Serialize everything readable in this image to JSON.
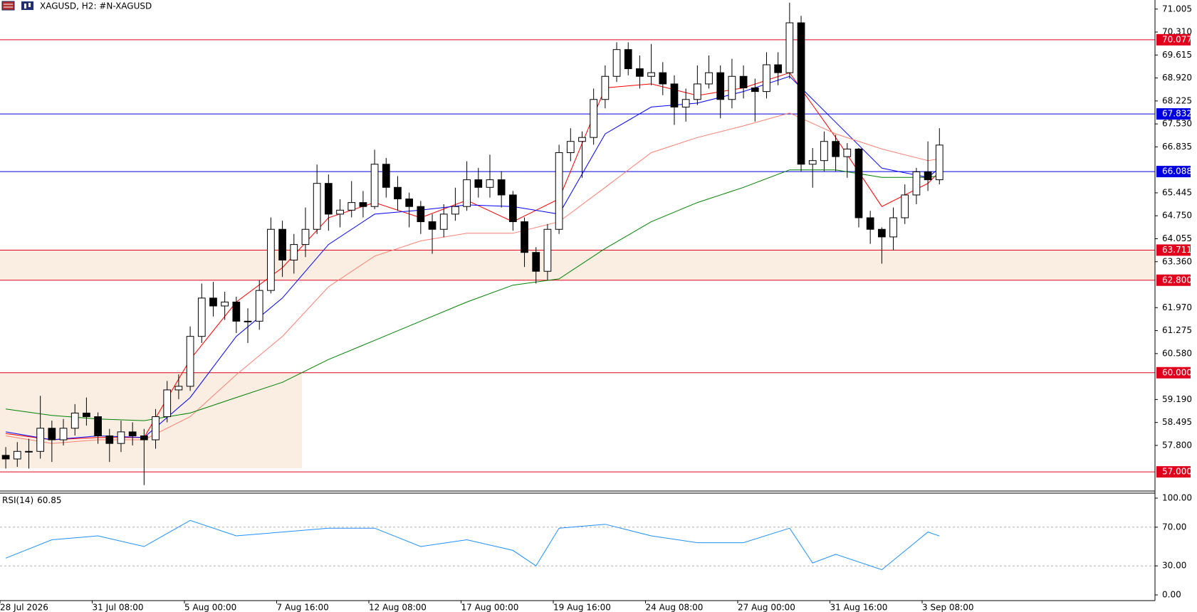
{
  "chart_data": [
    {
      "type": "candlestick",
      "title": "XAGUSD, H2:  #N-XAGUSD",
      "up_color": "#ffffff",
      "down_color": "#000000",
      "outline_color": "#000000",
      "open": [
        57.5,
        57.39,
        57.62,
        57.62,
        58.32,
        57.97,
        58.32,
        58.78,
        58.67,
        58.09,
        57.86,
        58.21,
        58.09,
        57.97,
        58.67,
        59.48,
        59.59,
        61.1,
        62.26,
        62.02,
        62.14,
        61.56,
        61.56,
        62.49,
        64.34,
        63.41,
        63.88,
        64.34,
        65.73,
        64.8,
        64.92,
        65.15,
        65.03,
        66.31,
        65.61,
        65.26,
        65.03,
        64.57,
        64.34,
        64.8,
        65.03,
        65.84,
        65.61,
        65.84,
        65.38,
        64.57,
        63.64,
        63.07,
        64.34,
        66.66,
        67.0,
        67.12,
        68.27,
        68.97,
        69.78,
        69.2,
        68.97,
        69.08,
        68.74,
        68.04,
        68.27,
        68.74,
        69.08,
        68.27,
        68.97,
        68.62,
        68.51,
        69.32,
        69.08,
        70.59,
        66.31,
        66.42,
        67.0,
        66.54,
        66.77,
        64.69,
        64.34,
        64.11,
        64.69,
        65.38,
        66.08,
        65.84
      ],
      "high": [
        57.75,
        57.9,
        58.0,
        59.3,
        58.55,
        58.6,
        59.05,
        59.25,
        58.8,
        58.3,
        58.55,
        58.5,
        58.3,
        58.9,
        59.75,
        59.95,
        61.4,
        62.7,
        62.75,
        62.45,
        62.3,
        61.95,
        62.8,
        64.7,
        64.6,
        64.2,
        65.0,
        66.3,
        66.0,
        65.25,
        65.8,
        65.5,
        66.75,
        66.5,
        65.95,
        65.45,
        65.2,
        64.8,
        65.1,
        65.6,
        66.4,
        66.2,
        66.6,
        66.1,
        65.5,
        64.7,
        63.8,
        64.5,
        66.9,
        67.4,
        67.3,
        68.6,
        69.3,
        70.0,
        70.0,
        69.6,
        69.95,
        69.4,
        69.0,
        68.6,
        69.3,
        69.6,
        69.3,
        69.5,
        69.3,
        68.9,
        69.7,
        69.7,
        71.2,
        70.8,
        66.8,
        67.3,
        67.2,
        66.95,
        66.8,
        64.9,
        64.4,
        65.0,
        65.7,
        66.2,
        67.0,
        67.4
      ],
      "low": [
        57.1,
        57.15,
        57.1,
        57.4,
        57.3,
        57.8,
        58.1,
        58.4,
        57.85,
        57.3,
        57.6,
        57.8,
        56.6,
        57.7,
        58.5,
        59.2,
        59.45,
        60.9,
        61.7,
        61.6,
        61.2,
        60.9,
        61.3,
        62.4,
        62.9,
        63.0,
        63.5,
        64.2,
        64.3,
        64.4,
        64.7,
        64.7,
        64.95,
        65.3,
        64.9,
        64.4,
        64.2,
        63.6,
        64.1,
        64.6,
        64.9,
        65.3,
        65.3,
        65.0,
        64.3,
        63.2,
        62.7,
        62.8,
        64.2,
        66.4,
        65.9,
        66.9,
        68.0,
        68.8,
        69.0,
        68.6,
        68.7,
        68.4,
        67.5,
        67.6,
        68.1,
        68.6,
        67.7,
        68.0,
        68.3,
        67.6,
        68.3,
        68.7,
        68.9,
        66.1,
        65.6,
        66.1,
        66.1,
        65.9,
        64.4,
        63.9,
        63.3,
        63.7,
        64.5,
        65.1,
        65.5,
        65.7
      ],
      "close": [
        57.39,
        57.62,
        57.62,
        58.32,
        57.97,
        58.32,
        58.78,
        58.67,
        58.09,
        57.86,
        58.21,
        58.09,
        57.97,
        58.67,
        59.48,
        59.59,
        61.1,
        62.26,
        62.02,
        62.14,
        61.56,
        61.56,
        62.49,
        64.34,
        63.41,
        63.88,
        64.34,
        65.73,
        64.8,
        64.92,
        65.15,
        65.03,
        66.31,
        65.61,
        65.26,
        65.03,
        64.57,
        64.34,
        64.8,
        65.03,
        65.84,
        65.61,
        65.84,
        65.38,
        64.57,
        63.64,
        63.07,
        64.34,
        66.66,
        67.0,
        67.12,
        68.27,
        68.97,
        69.78,
        69.2,
        68.97,
        69.08,
        68.74,
        68.04,
        68.27,
        68.74,
        69.08,
        68.27,
        68.97,
        68.62,
        68.51,
        69.32,
        69.08,
        70.59,
        66.31,
        66.42,
        67.0,
        66.54,
        66.77,
        64.69,
        64.34,
        64.11,
        64.69,
        65.38,
        66.08,
        65.84,
        66.89
      ],
      "xlim": [
        0,
        100.2
      ],
      "xticks": [
        {
          "value": 0,
          "label": "28 Jul 2026"
        },
        {
          "value": 8,
          "label": "31 Jul 08:00"
        },
        {
          "value": 16,
          "label": "5 Aug 00:00"
        },
        {
          "value": 24,
          "label": "7 Aug 16:00"
        },
        {
          "value": 32,
          "label": "12 Aug 08:00"
        },
        {
          "value": 40,
          "label": "17 Aug 00:00"
        },
        {
          "value": 48,
          "label": "19 Aug 16:00"
        },
        {
          "value": 56,
          "label": "24 Aug 08:00"
        },
        {
          "value": 64,
          "label": "27 Aug 00:00"
        },
        {
          "value": 72,
          "label": "31 Aug 16:00"
        },
        {
          "value": 80,
          "label": "3 Sep 08:00"
        }
      ],
      "ylim": [
        56.42,
        71.28
      ],
      "yticks": [
        {
          "value": 71.005,
          "label": "71.005"
        },
        {
          "value": 70.31,
          "label": "70.310"
        },
        {
          "value": 69.615,
          "label": "69.615"
        },
        {
          "value": 68.92,
          "label": "68.920"
        },
        {
          "value": 68.225,
          "label": "68.225"
        },
        {
          "value": 67.53,
          "label": "67.530"
        },
        {
          "value": 66.835,
          "label": "66.835"
        },
        {
          "value": 65.445,
          "label": "65.445"
        },
        {
          "value": 64.75,
          "label": "64.750"
        },
        {
          "value": 64.055,
          "label": "64.055"
        },
        {
          "value": 63.36,
          "label": "63.360"
        },
        {
          "value": 61.97,
          "label": "61.970"
        },
        {
          "value": 61.275,
          "label": "61.275"
        },
        {
          "value": 60.58,
          "label": "60.580"
        },
        {
          "value": 59.19,
          "label": "59.190"
        },
        {
          "value": 58.495,
          "label": "58.495"
        },
        {
          "value": 57.8,
          "label": "57.800"
        }
      ],
      "levels": [
        {
          "value": 70.077,
          "label": "70.077",
          "color": "#e0001b"
        },
        {
          "value": 67.832,
          "label": "67.832",
          "color": "#0000e0"
        },
        {
          "value": 66.088,
          "label": "66.088",
          "color": "#0000e0"
        },
        {
          "value": 63.711,
          "label": "63.711",
          "color": "#e0001b"
        },
        {
          "value": 62.8,
          "label": "62.800",
          "color": "#e0001b"
        },
        {
          "value": 60.0,
          "label": "60.000",
          "color": "#e0001b"
        },
        {
          "value": 57.0,
          "label": "57.000",
          "color": "#e0001b"
        }
      ],
      "zones": [
        {
          "low": 62.8,
          "high": 63.711,
          "x_end": 100.2,
          "color": "#faeee2"
        },
        {
          "low": 57.11,
          "high": 60.0,
          "x_end": 26.2,
          "color": "#faeee2"
        }
      ],
      "series": [
        {
          "color": "#ff0000",
          "x": [
            0,
            4,
            8,
            12,
            16,
            20,
            24,
            28,
            32,
            36,
            40,
            44,
            48,
            52,
            56,
            60,
            64,
            68,
            72,
            76,
            80,
            81
          ],
          "values": [
            58.16,
            57.97,
            58.04,
            58.04,
            60.4,
            62.14,
            63.18,
            64.69,
            65.15,
            64.69,
            65.22,
            64.57,
            65.26,
            68.62,
            68.74,
            68.39,
            68.62,
            69.08,
            67.12,
            65.03,
            65.73,
            66.08
          ]
        },
        {
          "color": "#0000ff",
          "x": [
            0,
            4,
            8,
            12,
            16,
            20,
            24,
            28,
            32,
            36,
            40,
            44,
            48,
            52,
            56,
            60,
            64,
            68,
            72,
            76,
            80,
            81
          ],
          "values": [
            58.21,
            57.97,
            58.09,
            58.04,
            59.25,
            61.1,
            62.26,
            63.88,
            64.8,
            64.92,
            65.08,
            65.03,
            64.8,
            67.23,
            68.04,
            68.16,
            68.51,
            68.97,
            67.58,
            66.19,
            65.91,
            66.19
          ]
        },
        {
          "color": "#fa8072",
          "x": [
            0,
            4,
            8,
            12,
            16,
            20,
            24,
            28,
            32,
            36,
            40,
            44,
            48,
            52,
            56,
            60,
            64,
            68,
            72,
            76,
            80,
            81
          ],
          "values": [
            58.09,
            57.86,
            57.97,
            57.97,
            58.67,
            59.94,
            61.1,
            62.6,
            63.53,
            63.99,
            64.22,
            64.22,
            64.57,
            65.61,
            66.66,
            67.12,
            67.47,
            67.86,
            67.23,
            66.77,
            66.42,
            66.47
          ]
        },
        {
          "color": "#008000",
          "x": [
            0,
            4,
            8,
            12,
            16,
            20,
            24,
            28,
            32,
            36,
            40,
            44,
            48,
            52,
            56,
            60,
            64,
            68,
            72,
            76,
            80,
            81
          ],
          "values": [
            58.9,
            58.71,
            58.6,
            58.55,
            58.78,
            59.25,
            59.71,
            60.4,
            60.98,
            61.56,
            62.14,
            62.65,
            62.84,
            63.76,
            64.57,
            65.15,
            65.61,
            66.14,
            66.14,
            65.91,
            65.91,
            65.96
          ]
        }
      ]
    },
    {
      "type": "line",
      "title": "RSI(14)",
      "xlim": [
        0,
        100.2
      ],
      "ylim": [
        0,
        100
      ],
      "yticks": [
        {
          "value": 100,
          "label": "100.00"
        },
        {
          "value": 70,
          "label": "70.00"
        },
        {
          "value": 30,
          "label": "30.00"
        },
        {
          "value": 0,
          "label": "0.00"
        }
      ],
      "levels": [
        70,
        30
      ],
      "series": [
        {
          "color": "#1e90ff",
          "x": [
            0,
            4,
            8,
            12,
            16,
            20,
            24,
            28,
            32,
            36,
            40,
            44,
            46,
            48,
            52,
            56,
            60,
            64,
            68,
            70,
            72,
            76,
            80,
            81
          ],
          "values": [
            38,
            57,
            61,
            50,
            77,
            61,
            65,
            69,
            69,
            50,
            57,
            46,
            30,
            69,
            73,
            61,
            54,
            54,
            69,
            33,
            42,
            26,
            65,
            60.85
          ]
        }
      ]
    }
  ]
}
